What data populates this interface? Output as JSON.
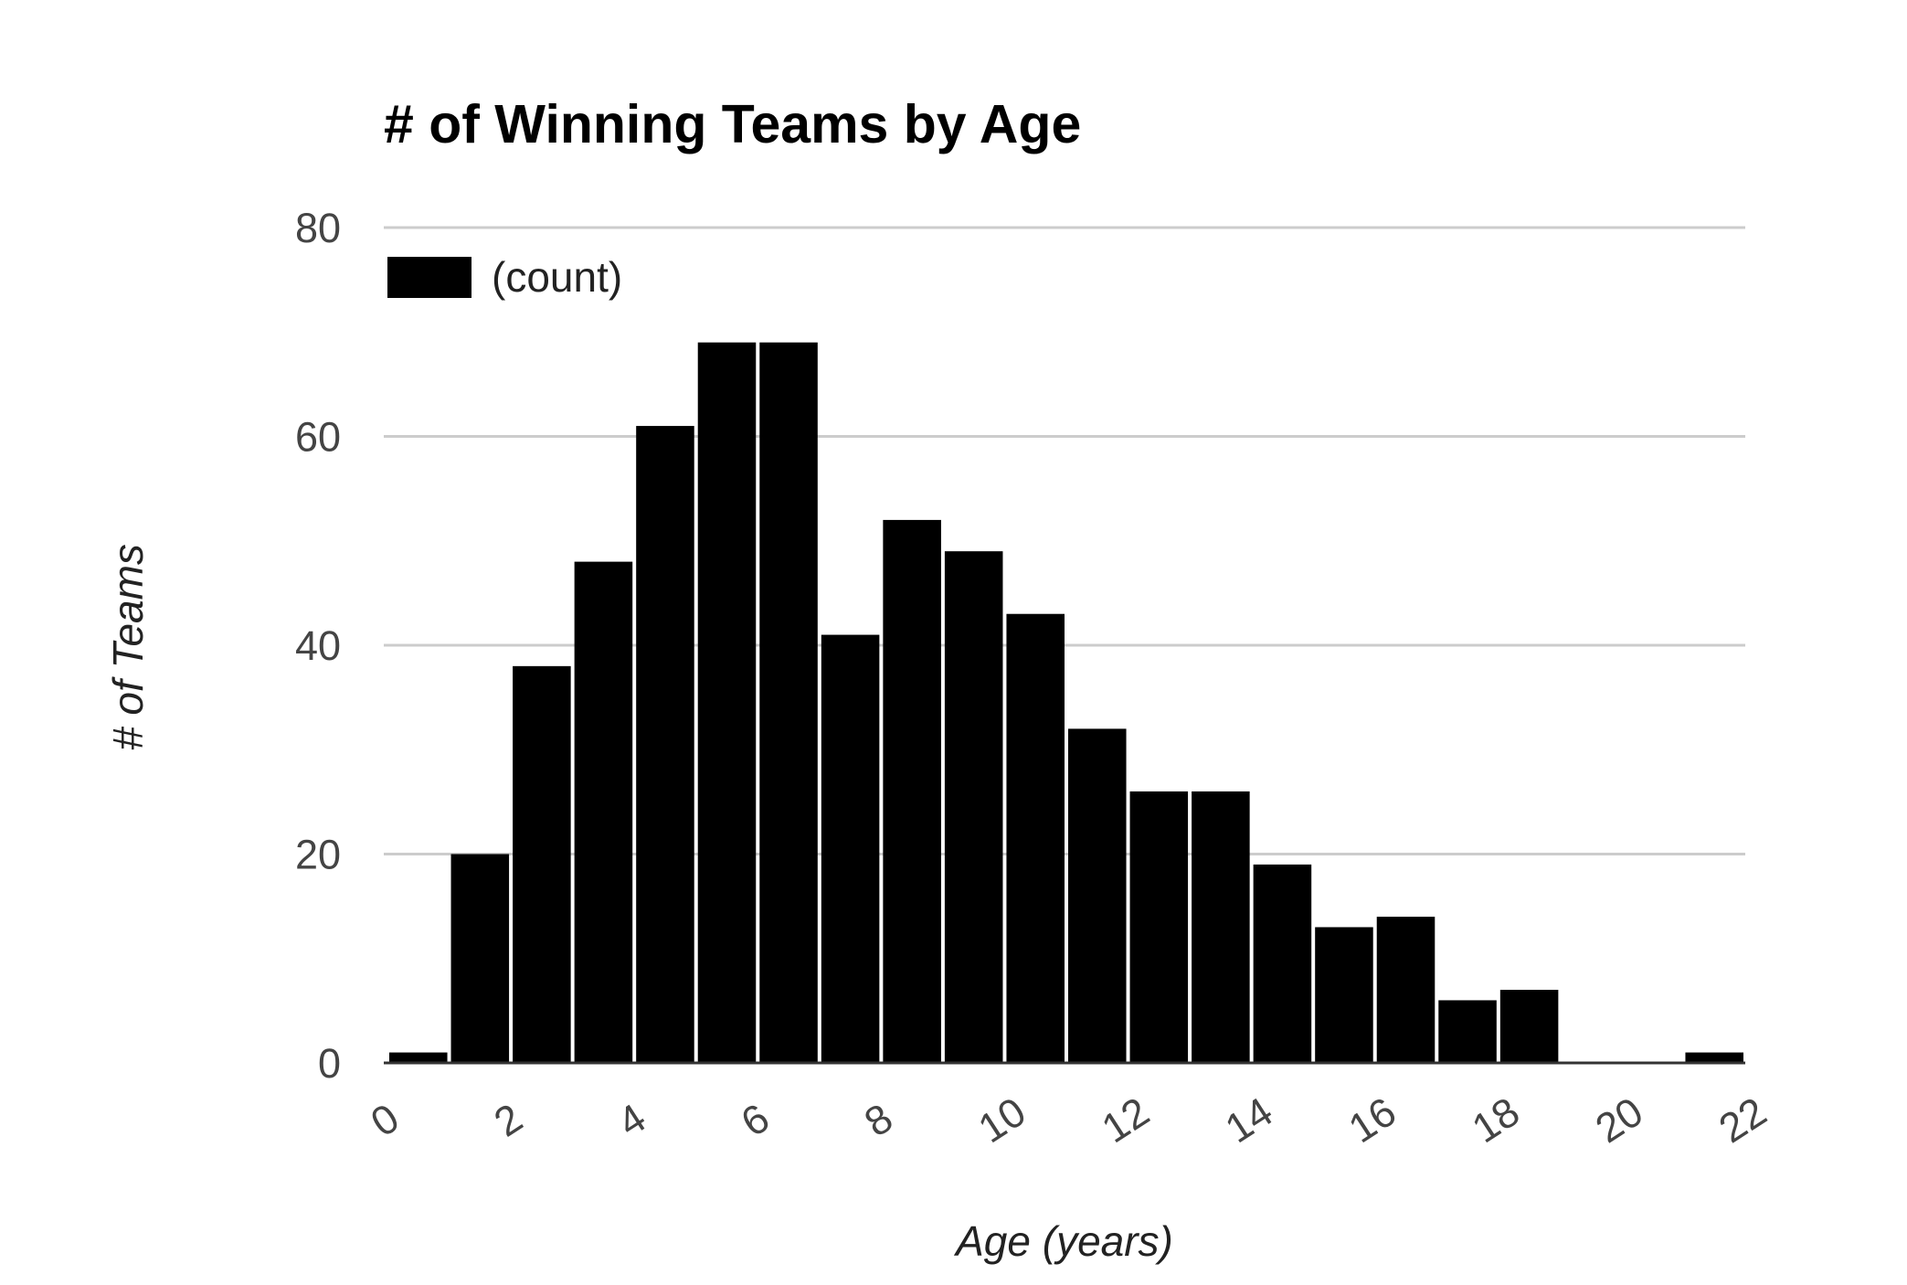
{
  "chart_data": {
    "type": "bar",
    "title": "# of Winning Teams by Age",
    "xlabel": "Age (years)",
    "ylabel": "# of Teams",
    "legend": {
      "label": "(count)",
      "position": "top-left"
    },
    "bins": [
      [
        0,
        1
      ],
      [
        1,
        2
      ],
      [
        2,
        3
      ],
      [
        3,
        4
      ],
      [
        4,
        5
      ],
      [
        5,
        6
      ],
      [
        6,
        7
      ],
      [
        7,
        8
      ],
      [
        8,
        9
      ],
      [
        9,
        10
      ],
      [
        10,
        11
      ],
      [
        11,
        12
      ],
      [
        12,
        13
      ],
      [
        13,
        14
      ],
      [
        14,
        15
      ],
      [
        15,
        16
      ],
      [
        16,
        17
      ],
      [
        17,
        18
      ],
      [
        18,
        19
      ],
      [
        19,
        20
      ],
      [
        20,
        21
      ],
      [
        21,
        22
      ]
    ],
    "values": [
      1,
      20,
      38,
      48,
      61,
      69,
      69,
      41,
      52,
      49,
      43,
      32,
      26,
      26,
      19,
      13,
      14,
      6,
      7,
      0,
      0,
      1
    ],
    "xlim": [
      0,
      22
    ],
    "ylim": [
      0,
      80
    ],
    "x_ticks": [
      "0",
      "2",
      "4",
      "6",
      "8",
      "10",
      "12",
      "14",
      "16",
      "18",
      "20",
      "22"
    ],
    "y_ticks": [
      "0",
      "20",
      "40",
      "60",
      "80"
    ],
    "grid": true,
    "bar_color": "#000000",
    "grid_color": "#cccccc"
  }
}
